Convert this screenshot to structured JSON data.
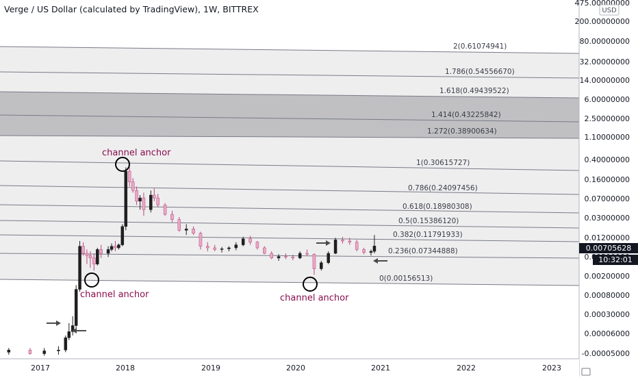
{
  "header": {
    "title": "Verge / US Dollar (calculated by TradingView), 1W, BITTREX"
  },
  "currency_badge": "USD",
  "chart_data": {
    "type": "candlestick",
    "title": "Verge / US Dollar (calculated by TradingView), 1W, BITTREX",
    "y_scale": "log",
    "y_ticks": [
      "475.00000000",
      "200.00000000",
      "80.00000000",
      "32.00000000",
      "14.00000000",
      "6.00000000",
      "2.50000000",
      "1.10000000",
      "0.40000000",
      "0.16000000",
      "0.07000000",
      "0.03000000",
      "0.01200000",
      "0.00500000",
      "0.00200000",
      "0.00080000",
      "0.00030000",
      "0.00006000",
      "-0.00005000"
    ],
    "x_ticks": [
      "2017",
      "2018",
      "2019",
      "2020",
      "2021",
      "2022",
      "2023"
    ],
    "last_price": "0.00705628",
    "countdown": "10:32:01",
    "fib_levels": [
      {
        "label": "0(0.00156513)"
      },
      {
        "label": "0.236(0.07344888)"
      },
      {
        "label": "0.382(0.11791933)"
      },
      {
        "label": "0.5(0.15386120)"
      },
      {
        "label": "0.618(0.18980308)"
      },
      {
        "label": "0.786(0.24097456)"
      },
      {
        "label": "1(0.30615727)"
      },
      {
        "label": "1.272(0.38900634)"
      },
      {
        "label": "1.414(0.43225842)"
      },
      {
        "label": "1.618(0.49439522)"
      },
      {
        "label": "1.786(0.54556670)"
      },
      {
        "label": "2(0.61074941)"
      }
    ],
    "annotations": [
      {
        "text": "channel anchor",
        "date": "2017-12"
      },
      {
        "text": "channel anchor",
        "date": "2017-08"
      },
      {
        "text": "channel anchor",
        "date": "2020-03"
      }
    ],
    "candles": [
      {
        "date": "2016-08",
        "o": 4.5e-05,
        "h": 5.5e-05,
        "l": 4e-05,
        "c": 5e-05
      },
      {
        "date": "2016-11",
        "o": 5e-05,
        "h": 5.5e-05,
        "l": 4e-05,
        "c": 4.2e-05
      },
      {
        "date": "2017-01",
        "o": 4.2e-05,
        "h": 5.5e-05,
        "l": 3.8e-05,
        "c": 4.8e-05
      },
      {
        "date": "2017-03",
        "o": 4.8e-05,
        "h": 6e-05,
        "l": 4e-05,
        "c": 5e-05
      },
      {
        "date": "2017-04",
        "o": 5e-05,
        "h": 0.0001,
        "l": 4.5e-05,
        "c": 9e-05
      },
      {
        "date": "2017-04",
        "o": 9e-05,
        "h": 0.00018,
        "l": 8e-05,
        "c": 0.00012
      },
      {
        "date": "2017-05",
        "o": 0.00012,
        "h": 0.00025,
        "l": 0.0001,
        "c": 0.00016
      },
      {
        "date": "2017-05",
        "o": 0.00016,
        "h": 0.0011,
        "l": 0.00014,
        "c": 0.0009
      },
      {
        "date": "2017-06",
        "o": 0.0009,
        "h": 0.009,
        "l": 0.0008,
        "c": 0.007
      },
      {
        "date": "2017-06",
        "o": 0.007,
        "h": 0.0085,
        "l": 0.0045,
        "c": 0.005
      },
      {
        "date": "2017-07",
        "o": 0.005,
        "h": 0.006,
        "l": 0.003,
        "c": 0.0045
      },
      {
        "date": "2017-07",
        "o": 0.0045,
        "h": 0.0055,
        "l": 0.0025,
        "c": 0.004
      },
      {
        "date": "2017-08",
        "o": 0.004,
        "h": 0.005,
        "l": 0.0022,
        "c": 0.003
      },
      {
        "date": "2017-08",
        "o": 0.003,
        "h": 0.0065,
        "l": 0.0028,
        "c": 0.006
      },
      {
        "date": "2017-09",
        "o": 0.006,
        "h": 0.0075,
        "l": 0.004,
        "c": 0.005
      },
      {
        "date": "2017-10",
        "o": 0.005,
        "h": 0.007,
        "l": 0.0042,
        "c": 0.006
      },
      {
        "date": "2017-10",
        "o": 0.006,
        "h": 0.008,
        "l": 0.0055,
        "c": 0.007
      },
      {
        "date": "2017-11",
        "o": 0.007,
        "h": 0.009,
        "l": 0.0055,
        "c": 0.0065
      },
      {
        "date": "2017-11",
        "o": 0.0065,
        "h": 0.008,
        "l": 0.006,
        "c": 0.0075
      },
      {
        "date": "2017-12",
        "o": 0.0075,
        "h": 0.02,
        "l": 0.007,
        "c": 0.018
      },
      {
        "date": "2017-12",
        "o": 0.018,
        "h": 0.3,
        "l": 0.015,
        "c": 0.25
      },
      {
        "date": "2018-01",
        "o": 0.25,
        "h": 0.3,
        "l": 0.12,
        "c": 0.15
      },
      {
        "date": "2018-01",
        "o": 0.15,
        "h": 0.18,
        "l": 0.09,
        "c": 0.1
      },
      {
        "date": "2018-02",
        "o": 0.1,
        "h": 0.12,
        "l": 0.05,
        "c": 0.06
      },
      {
        "date": "2018-02",
        "o": 0.06,
        "h": 0.08,
        "l": 0.04,
        "c": 0.07
      },
      {
        "date": "2018-03",
        "o": 0.07,
        "h": 0.09,
        "l": 0.03,
        "c": 0.04
      },
      {
        "date": "2018-04",
        "o": 0.04,
        "h": 0.1,
        "l": 0.035,
        "c": 0.08
      },
      {
        "date": "2018-04",
        "o": 0.08,
        "h": 0.11,
        "l": 0.06,
        "c": 0.07
      },
      {
        "date": "2018-05",
        "o": 0.07,
        "h": 0.085,
        "l": 0.045,
        "c": 0.05
      },
      {
        "date": "2018-06",
        "o": 0.05,
        "h": 0.055,
        "l": 0.03,
        "c": 0.032
      },
      {
        "date": "2018-07",
        "o": 0.032,
        "h": 0.038,
        "l": 0.022,
        "c": 0.025
      },
      {
        "date": "2018-08",
        "o": 0.025,
        "h": 0.028,
        "l": 0.014,
        "c": 0.015
      },
      {
        "date": "2018-09",
        "o": 0.015,
        "h": 0.02,
        "l": 0.012,
        "c": 0.016
      },
      {
        "date": "2018-10",
        "o": 0.016,
        "h": 0.018,
        "l": 0.012,
        "c": 0.013
      },
      {
        "date": "2018-11",
        "o": 0.013,
        "h": 0.014,
        "l": 0.006,
        "c": 0.007
      },
      {
        "date": "2018-12",
        "o": 0.007,
        "h": 0.0085,
        "l": 0.0055,
        "c": 0.0065
      },
      {
        "date": "2019-01",
        "o": 0.0065,
        "h": 0.0075,
        "l": 0.0055,
        "c": 0.006
      },
      {
        "date": "2019-02",
        "o": 0.006,
        "h": 0.0068,
        "l": 0.0052,
        "c": 0.0062
      },
      {
        "date": "2019-03",
        "o": 0.0062,
        "h": 0.007,
        "l": 0.0055,
        "c": 0.0065
      },
      {
        "date": "2019-04",
        "o": 0.0065,
        "h": 0.0085,
        "l": 0.0058,
        "c": 0.0075
      },
      {
        "date": "2019-05",
        "o": 0.0075,
        "h": 0.011,
        "l": 0.007,
        "c": 0.01
      },
      {
        "date": "2019-06",
        "o": 0.01,
        "h": 0.0115,
        "l": 0.0075,
        "c": 0.0085
      },
      {
        "date": "2019-07",
        "o": 0.0085,
        "h": 0.009,
        "l": 0.006,
        "c": 0.0065
      },
      {
        "date": "2019-08",
        "o": 0.0065,
        "h": 0.007,
        "l": 0.0048,
        "c": 0.005
      },
      {
        "date": "2019-09",
        "o": 0.005,
        "h": 0.0055,
        "l": 0.0038,
        "c": 0.004
      },
      {
        "date": "2019-10",
        "o": 0.004,
        "h": 0.0048,
        "l": 0.0035,
        "c": 0.0043
      },
      {
        "date": "2019-11",
        "o": 0.0043,
        "h": 0.005,
        "l": 0.0038,
        "c": 0.0042
      },
      {
        "date": "2019-12",
        "o": 0.0042,
        "h": 0.0047,
        "l": 0.0036,
        "c": 0.004
      },
      {
        "date": "2020-01",
        "o": 0.004,
        "h": 0.0055,
        "l": 0.0038,
        "c": 0.005
      },
      {
        "date": "2020-02",
        "o": 0.005,
        "h": 0.006,
        "l": 0.0045,
        "c": 0.0048
      },
      {
        "date": "2020-03",
        "o": 0.0048,
        "h": 0.005,
        "l": 0.0018,
        "c": 0.0024
      },
      {
        "date": "2020-04",
        "o": 0.0024,
        "h": 0.0035,
        "l": 0.0022,
        "c": 0.0032
      },
      {
        "date": "2020-05",
        "o": 0.0032,
        "h": 0.0055,
        "l": 0.003,
        "c": 0.005
      },
      {
        "date": "2020-06",
        "o": 0.005,
        "h": 0.0105,
        "l": 0.0048,
        "c": 0.0095
      },
      {
        "date": "2020-07",
        "o": 0.0095,
        "h": 0.011,
        "l": 0.008,
        "c": 0.009
      },
      {
        "date": "2020-08",
        "o": 0.009,
        "h": 0.0105,
        "l": 0.0075,
        "c": 0.0085
      },
      {
        "date": "2020-09",
        "o": 0.0085,
        "h": 0.0095,
        "l": 0.0055,
        "c": 0.006
      },
      {
        "date": "2020-10",
        "o": 0.006,
        "h": 0.0065,
        "l": 0.0048,
        "c": 0.0052
      },
      {
        "date": "2020-11",
        "o": 0.0052,
        "h": 0.006,
        "l": 0.0045,
        "c": 0.0055
      },
      {
        "date": "2020-11",
        "o": 0.0055,
        "h": 0.012,
        "l": 0.005,
        "c": 0.0071
      }
    ]
  },
  "colors": {
    "up": "#1f1f1f",
    "down": "#e9a9c6",
    "annotation": "#880e4f",
    "fib_line": "#787b86",
    "band_light": "#e8e8e9",
    "band_dark": "#b5b5b8",
    "price_label_bg": "#131722"
  }
}
